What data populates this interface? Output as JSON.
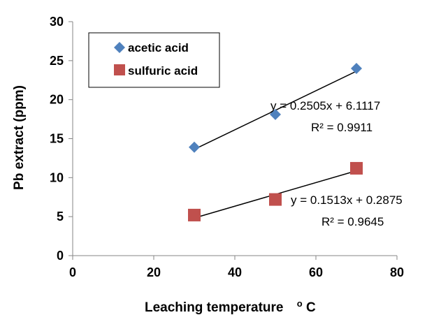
{
  "chart_data": {
    "type": "scatter",
    "xlabel": "Leaching temperature",
    "xlabel_unit_prefix": "o",
    "xlabel_unit": "C",
    "ylabel": "Pb extract (ppm)",
    "xlim": [
      0,
      80
    ],
    "ylim": [
      0,
      30
    ],
    "xticks": [
      0,
      20,
      40,
      60,
      80
    ],
    "yticks": [
      0,
      5,
      10,
      15,
      20,
      25,
      30
    ],
    "grid": false,
    "legend_position": "top-left",
    "series": [
      {
        "name": "acetic acid",
        "marker": "diamond",
        "color": "#4F81BD",
        "x": [
          30,
          50,
          70
        ],
        "y": [
          13.9,
          18.1,
          24.0
        ],
        "trendline": {
          "slope": 0.2505,
          "intercept": 6.1117,
          "x_range": [
            30,
            70
          ]
        },
        "equation": "y = 0.2505x + 6.1117",
        "r2": "R² = 0.9911"
      },
      {
        "name": "sulfuric acid",
        "marker": "square",
        "color": "#C0504D",
        "x": [
          30,
          50,
          70
        ],
        "y": [
          5.2,
          7.2,
          11.2
        ],
        "trendline": {
          "slope": 0.1513,
          "intercept": 0.2875,
          "x_range": [
            30,
            70
          ]
        },
        "equation": "y = 0.1513x + 0.2875",
        "r2": "R² = 0.9645"
      }
    ]
  }
}
